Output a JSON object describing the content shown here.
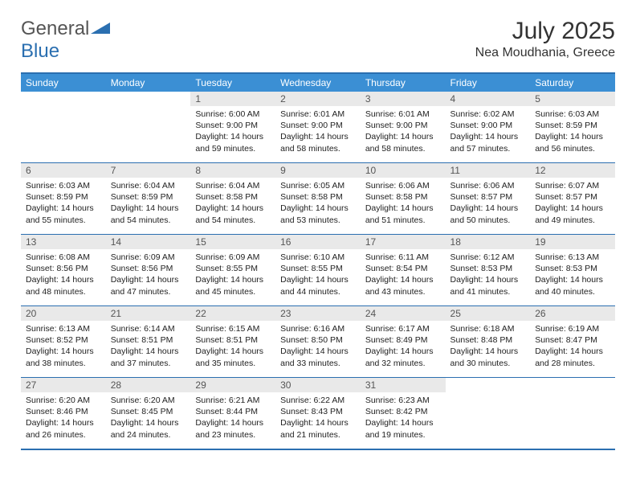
{
  "logo": {
    "part1": "General",
    "part2": "Blue",
    "text_color": "#555555",
    "blue_color": "#2b6fb0",
    "shape_color": "#2b6fb0"
  },
  "title": "July 2025",
  "location": "Nea Moudhania, Greece",
  "colors": {
    "header_bg": "#3b8fd4",
    "header_text": "#ffffff",
    "border": "#2b6fb0",
    "daynum_bg": "#e9e9e9",
    "daynum_text": "#555555",
    "body_text": "#222222",
    "page_bg": "#ffffff"
  },
  "day_headers": [
    "Sunday",
    "Monday",
    "Tuesday",
    "Wednesday",
    "Thursday",
    "Friday",
    "Saturday"
  ],
  "weeks": [
    [
      {
        "empty": true,
        "num": "",
        "sunrise": "",
        "sunset": "",
        "daylight": ""
      },
      {
        "empty": true,
        "num": "",
        "sunrise": "",
        "sunset": "",
        "daylight": ""
      },
      {
        "num": "1",
        "sunrise": "Sunrise: 6:00 AM",
        "sunset": "Sunset: 9:00 PM",
        "daylight": "Daylight: 14 hours and 59 minutes."
      },
      {
        "num": "2",
        "sunrise": "Sunrise: 6:01 AM",
        "sunset": "Sunset: 9:00 PM",
        "daylight": "Daylight: 14 hours and 58 minutes."
      },
      {
        "num": "3",
        "sunrise": "Sunrise: 6:01 AM",
        "sunset": "Sunset: 9:00 PM",
        "daylight": "Daylight: 14 hours and 58 minutes."
      },
      {
        "num": "4",
        "sunrise": "Sunrise: 6:02 AM",
        "sunset": "Sunset: 9:00 PM",
        "daylight": "Daylight: 14 hours and 57 minutes."
      },
      {
        "num": "5",
        "sunrise": "Sunrise: 6:03 AM",
        "sunset": "Sunset: 8:59 PM",
        "daylight": "Daylight: 14 hours and 56 minutes."
      }
    ],
    [
      {
        "num": "6",
        "sunrise": "Sunrise: 6:03 AM",
        "sunset": "Sunset: 8:59 PM",
        "daylight": "Daylight: 14 hours and 55 minutes."
      },
      {
        "num": "7",
        "sunrise": "Sunrise: 6:04 AM",
        "sunset": "Sunset: 8:59 PM",
        "daylight": "Daylight: 14 hours and 54 minutes."
      },
      {
        "num": "8",
        "sunrise": "Sunrise: 6:04 AM",
        "sunset": "Sunset: 8:58 PM",
        "daylight": "Daylight: 14 hours and 54 minutes."
      },
      {
        "num": "9",
        "sunrise": "Sunrise: 6:05 AM",
        "sunset": "Sunset: 8:58 PM",
        "daylight": "Daylight: 14 hours and 53 minutes."
      },
      {
        "num": "10",
        "sunrise": "Sunrise: 6:06 AM",
        "sunset": "Sunset: 8:58 PM",
        "daylight": "Daylight: 14 hours and 51 minutes."
      },
      {
        "num": "11",
        "sunrise": "Sunrise: 6:06 AM",
        "sunset": "Sunset: 8:57 PM",
        "daylight": "Daylight: 14 hours and 50 minutes."
      },
      {
        "num": "12",
        "sunrise": "Sunrise: 6:07 AM",
        "sunset": "Sunset: 8:57 PM",
        "daylight": "Daylight: 14 hours and 49 minutes."
      }
    ],
    [
      {
        "num": "13",
        "sunrise": "Sunrise: 6:08 AM",
        "sunset": "Sunset: 8:56 PM",
        "daylight": "Daylight: 14 hours and 48 minutes."
      },
      {
        "num": "14",
        "sunrise": "Sunrise: 6:09 AM",
        "sunset": "Sunset: 8:56 PM",
        "daylight": "Daylight: 14 hours and 47 minutes."
      },
      {
        "num": "15",
        "sunrise": "Sunrise: 6:09 AM",
        "sunset": "Sunset: 8:55 PM",
        "daylight": "Daylight: 14 hours and 45 minutes."
      },
      {
        "num": "16",
        "sunrise": "Sunrise: 6:10 AM",
        "sunset": "Sunset: 8:55 PM",
        "daylight": "Daylight: 14 hours and 44 minutes."
      },
      {
        "num": "17",
        "sunrise": "Sunrise: 6:11 AM",
        "sunset": "Sunset: 8:54 PM",
        "daylight": "Daylight: 14 hours and 43 minutes."
      },
      {
        "num": "18",
        "sunrise": "Sunrise: 6:12 AM",
        "sunset": "Sunset: 8:53 PM",
        "daylight": "Daylight: 14 hours and 41 minutes."
      },
      {
        "num": "19",
        "sunrise": "Sunrise: 6:13 AM",
        "sunset": "Sunset: 8:53 PM",
        "daylight": "Daylight: 14 hours and 40 minutes."
      }
    ],
    [
      {
        "num": "20",
        "sunrise": "Sunrise: 6:13 AM",
        "sunset": "Sunset: 8:52 PM",
        "daylight": "Daylight: 14 hours and 38 minutes."
      },
      {
        "num": "21",
        "sunrise": "Sunrise: 6:14 AM",
        "sunset": "Sunset: 8:51 PM",
        "daylight": "Daylight: 14 hours and 37 minutes."
      },
      {
        "num": "22",
        "sunrise": "Sunrise: 6:15 AM",
        "sunset": "Sunset: 8:51 PM",
        "daylight": "Daylight: 14 hours and 35 minutes."
      },
      {
        "num": "23",
        "sunrise": "Sunrise: 6:16 AM",
        "sunset": "Sunset: 8:50 PM",
        "daylight": "Daylight: 14 hours and 33 minutes."
      },
      {
        "num": "24",
        "sunrise": "Sunrise: 6:17 AM",
        "sunset": "Sunset: 8:49 PM",
        "daylight": "Daylight: 14 hours and 32 minutes."
      },
      {
        "num": "25",
        "sunrise": "Sunrise: 6:18 AM",
        "sunset": "Sunset: 8:48 PM",
        "daylight": "Daylight: 14 hours and 30 minutes."
      },
      {
        "num": "26",
        "sunrise": "Sunrise: 6:19 AM",
        "sunset": "Sunset: 8:47 PM",
        "daylight": "Daylight: 14 hours and 28 minutes."
      }
    ],
    [
      {
        "num": "27",
        "sunrise": "Sunrise: 6:20 AM",
        "sunset": "Sunset: 8:46 PM",
        "daylight": "Daylight: 14 hours and 26 minutes."
      },
      {
        "num": "28",
        "sunrise": "Sunrise: 6:20 AM",
        "sunset": "Sunset: 8:45 PM",
        "daylight": "Daylight: 14 hours and 24 minutes."
      },
      {
        "num": "29",
        "sunrise": "Sunrise: 6:21 AM",
        "sunset": "Sunset: 8:44 PM",
        "daylight": "Daylight: 14 hours and 23 minutes."
      },
      {
        "num": "30",
        "sunrise": "Sunrise: 6:22 AM",
        "sunset": "Sunset: 8:43 PM",
        "daylight": "Daylight: 14 hours and 21 minutes."
      },
      {
        "num": "31",
        "sunrise": "Sunrise: 6:23 AM",
        "sunset": "Sunset: 8:42 PM",
        "daylight": "Daylight: 14 hours and 19 minutes."
      },
      {
        "empty": true,
        "num": "",
        "sunrise": "",
        "sunset": "",
        "daylight": ""
      },
      {
        "empty": true,
        "num": "",
        "sunrise": "",
        "sunset": "",
        "daylight": ""
      }
    ]
  ]
}
